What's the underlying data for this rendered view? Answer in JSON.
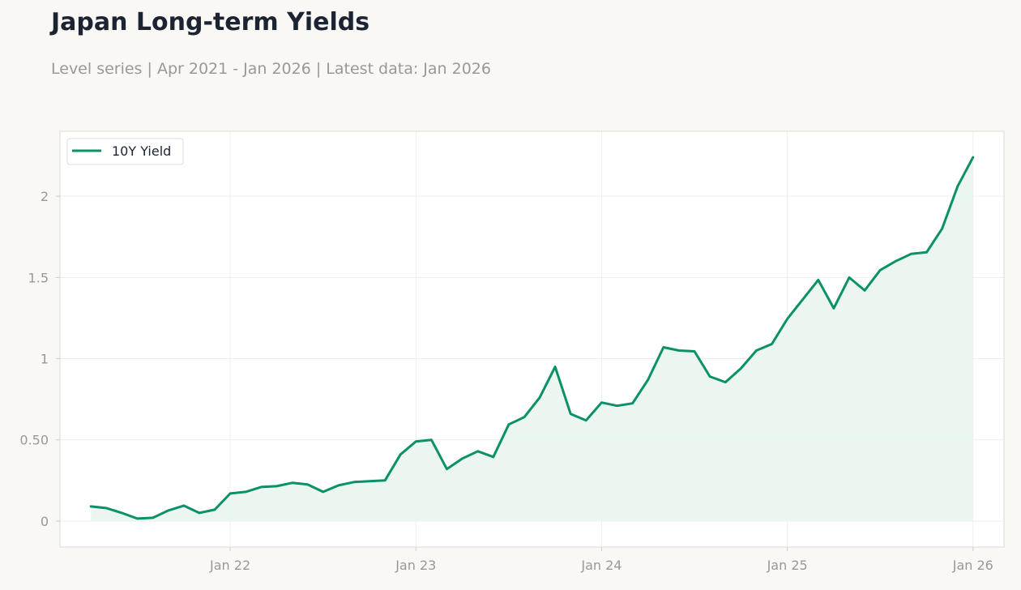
{
  "header": {
    "title": "Japan Long-term Yields",
    "subtitle": "Level series | Apr 2021 - Jan 2026 | Latest data: Jan 2026"
  },
  "colors": {
    "background": "#f9f8f5",
    "plot_background": "#ffffff",
    "series": "#0a9165",
    "fill": "#e9f5f0",
    "grid": "#eeeeee",
    "frame": "#dcdad2",
    "tick_text": "#999893",
    "title_text": "#1c2333"
  },
  "chart_data": {
    "type": "line",
    "title": "Japan Long-term Yields",
    "subtitle": "Level series | Apr 2021 - Jan 2026 | Latest data: Jan 2026",
    "xlabel": "",
    "ylabel": "",
    "xlim": [
      "2021-02",
      "2026-03"
    ],
    "ylim": [
      -0.16,
      2.4
    ],
    "grid": true,
    "legend_position": "top-left",
    "x_ticks": [
      {
        "date": "2022-01",
        "label": "Jan 22"
      },
      {
        "date": "2023-01",
        "label": "Jan 23"
      },
      {
        "date": "2024-01",
        "label": "Jan 24"
      },
      {
        "date": "2025-01",
        "label": "Jan 25"
      },
      {
        "date": "2026-01",
        "label": "Jan 26"
      }
    ],
    "y_ticks": [
      {
        "value": 0,
        "label": "0"
      },
      {
        "value": 0.5,
        "label": "0.50"
      },
      {
        "value": 1,
        "label": "1"
      },
      {
        "value": 1.5,
        "label": "1.5"
      },
      {
        "value": 2,
        "label": "2"
      }
    ],
    "series": [
      {
        "name": "10Y Yield",
        "x": [
          "2021-04",
          "2021-05",
          "2021-06",
          "2021-07",
          "2021-08",
          "2021-09",
          "2021-10",
          "2021-11",
          "2021-12",
          "2022-01",
          "2022-02",
          "2022-03",
          "2022-04",
          "2022-05",
          "2022-06",
          "2022-07",
          "2022-08",
          "2022-09",
          "2022-10",
          "2022-11",
          "2022-12",
          "2023-01",
          "2023-02",
          "2023-03",
          "2023-04",
          "2023-05",
          "2023-06",
          "2023-07",
          "2023-08",
          "2023-09",
          "2023-10",
          "2023-11",
          "2023-12",
          "2024-01",
          "2024-02",
          "2024-03",
          "2024-04",
          "2024-05",
          "2024-06",
          "2024-07",
          "2024-08",
          "2024-09",
          "2024-10",
          "2024-11",
          "2024-12",
          "2025-01",
          "2025-02",
          "2025-03",
          "2025-04",
          "2025-05",
          "2025-06",
          "2025-07",
          "2025-08",
          "2025-09",
          "2025-10",
          "2025-11",
          "2025-12",
          "2026-01"
        ],
        "values": [
          0.09,
          0.08,
          0.05,
          0.015,
          0.02,
          0.065,
          0.095,
          0.05,
          0.07,
          0.17,
          0.18,
          0.21,
          0.215,
          0.235,
          0.225,
          0.18,
          0.22,
          0.24,
          0.245,
          0.25,
          0.41,
          0.49,
          0.5,
          0.32,
          0.385,
          0.43,
          0.395,
          0.595,
          0.64,
          0.76,
          0.95,
          0.66,
          0.62,
          0.73,
          0.71,
          0.725,
          0.87,
          1.07,
          1.05,
          1.045,
          0.89,
          0.855,
          0.94,
          1.05,
          1.09,
          1.245,
          1.365,
          1.485,
          1.31,
          1.5,
          1.42,
          1.545,
          1.6,
          1.645,
          1.655,
          1.8,
          2.06,
          2.24
        ]
      }
    ]
  }
}
